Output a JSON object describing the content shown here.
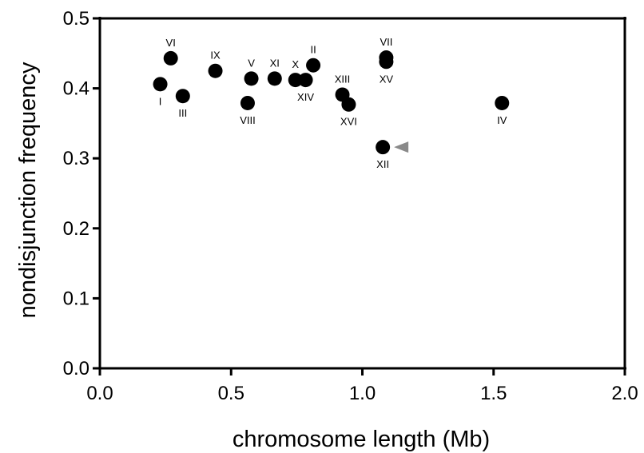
{
  "chart_data": {
    "type": "scatter",
    "title": "",
    "xlabel": "chromosome length (Mb)",
    "ylabel": "nondisjunction frequency",
    "xlim": [
      0.0,
      2.0
    ],
    "ylim": [
      0.0,
      0.5
    ],
    "x_ticks": [
      "0.0",
      "0.5",
      "1.0",
      "1.5",
      "2.0"
    ],
    "y_ticks": [
      "0.0",
      "0.1",
      "0.2",
      "0.3",
      "0.4",
      "0.5"
    ],
    "grid": false,
    "points": [
      {
        "label": "I",
        "x": 0.23,
        "y": 0.406,
        "label_pos": "below"
      },
      {
        "label": "VI",
        "x": 0.27,
        "y": 0.443,
        "label_pos": "above"
      },
      {
        "label": "III",
        "x": 0.316,
        "y": 0.389,
        "label_pos": "below"
      },
      {
        "label": "IX",
        "x": 0.44,
        "y": 0.425,
        "label_pos": "above"
      },
      {
        "label": "VIII",
        "x": 0.563,
        "y": 0.379,
        "label_pos": "below"
      },
      {
        "label": "V",
        "x": 0.577,
        "y": 0.414,
        "label_pos": "above"
      },
      {
        "label": "XI",
        "x": 0.666,
        "y": 0.414,
        "label_pos": "above"
      },
      {
        "label": "X",
        "x": 0.745,
        "y": 0.412,
        "label_pos": "above"
      },
      {
        "label": "XIV",
        "x": 0.784,
        "y": 0.412,
        "label_pos": "below"
      },
      {
        "label": "II",
        "x": 0.813,
        "y": 0.433,
        "label_pos": "above"
      },
      {
        "label": "XIII",
        "x": 0.924,
        "y": 0.391,
        "label_pos": "above"
      },
      {
        "label": "XVI",
        "x": 0.948,
        "y": 0.377,
        "label_pos": "below"
      },
      {
        "label": "XII",
        "x": 1.078,
        "y": 0.316,
        "label_pos": "below",
        "marker": "arrowhead"
      },
      {
        "label": "VII",
        "x": 1.091,
        "y": 0.444,
        "label_pos": "above"
      },
      {
        "label": "XV",
        "x": 1.091,
        "y": 0.438,
        "label_pos": "below"
      },
      {
        "label": "IV",
        "x": 1.532,
        "y": 0.379,
        "label_pos": "below"
      }
    ],
    "marker_color": "#000000",
    "arrow_color": "#8a8a8a"
  }
}
